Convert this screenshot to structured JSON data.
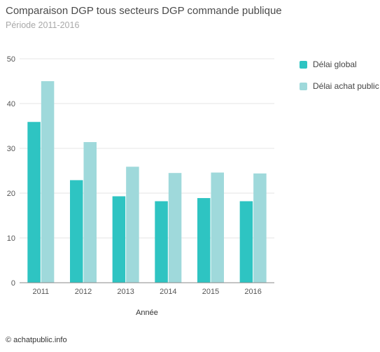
{
  "chart_data": {
    "type": "bar",
    "title": "Comparaison DGP tous secteurs DGP commande publique",
    "subtitle": "Période 2011-2016",
    "xlabel": "Année",
    "ylabel": "",
    "categories": [
      "2011",
      "2012",
      "2013",
      "2014",
      "2015",
      "2016"
    ],
    "ylim": [
      0,
      50
    ],
    "yticks": [
      0,
      10,
      20,
      30,
      40,
      50
    ],
    "grid": true,
    "legend_position": "right",
    "series": [
      {
        "name": "Délai global",
        "color": "#2ec4c2",
        "values": [
          35.9,
          22.9,
          19.3,
          18.2,
          18.9,
          18.2
        ]
      },
      {
        "name": "Délai achat public",
        "color": "#9fd9db",
        "values": [
          45.0,
          31.4,
          25.9,
          24.5,
          24.6,
          24.4
        ]
      }
    ]
  },
  "credit": "© achatpublic.info"
}
